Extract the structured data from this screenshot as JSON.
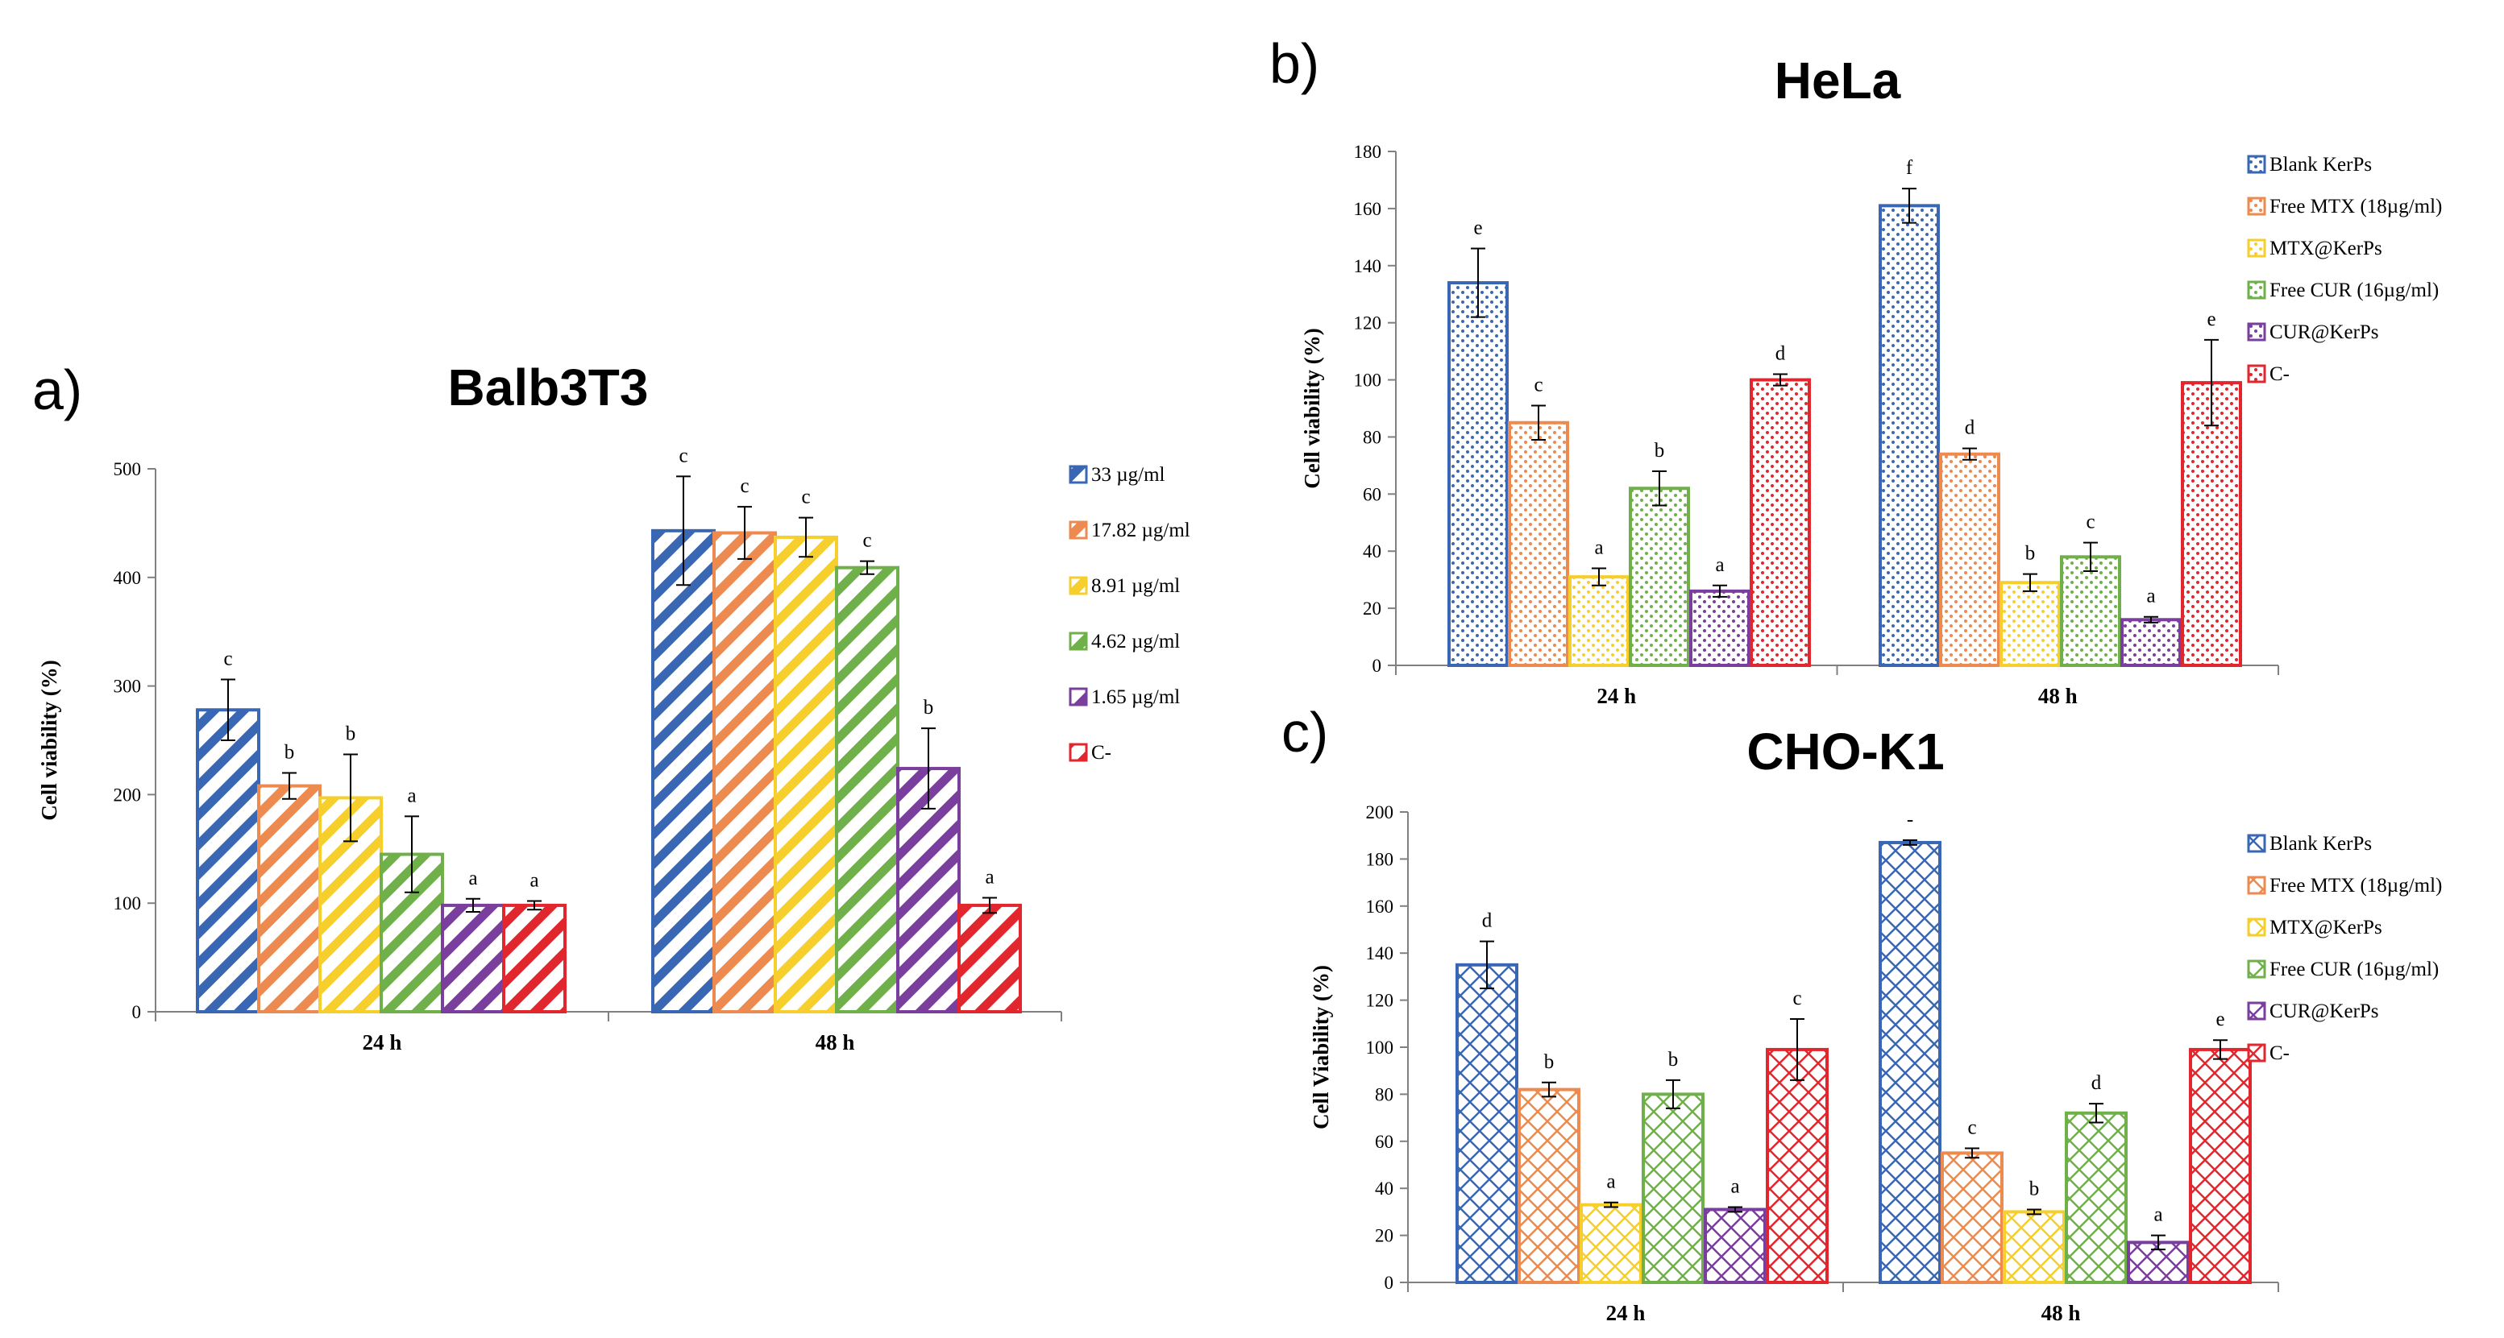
{
  "colors": {
    "blue": "#3a67b4",
    "orange": "#ec8a4f",
    "yellow": "#f6cf2c",
    "green": "#6fb04a",
    "purple": "#7a3e9d",
    "red": "#e2262d",
    "axis": "#808080"
  },
  "chart_data": [
    {
      "id": "a",
      "panel": "a)",
      "type": "bar",
      "title": "Balb3T3",
      "xlabel": "",
      "ylabel": "Cell viability  (%)",
      "ylim": [
        0,
        500
      ],
      "yticks": [
        0,
        100,
        200,
        300,
        400,
        500
      ],
      "pattern": "stripes",
      "grid": false,
      "legend_position": "right",
      "categories": [
        "24 h",
        "48 h"
      ],
      "series": [
        {
          "name": "33 µg/ml",
          "color": "blue",
          "values": [
            278,
            443
          ],
          "errors": [
            28,
            50
          ],
          "letters": [
            "c",
            "c"
          ]
        },
        {
          "name": "17.82 µg/ml",
          "color": "orange",
          "values": [
            208,
            441
          ],
          "errors": [
            12,
            24
          ],
          "letters": [
            "b",
            "c"
          ]
        },
        {
          "name": "8.91 µg/ml",
          "color": "yellow",
          "values": [
            197,
            437
          ],
          "errors": [
            40,
            18
          ],
          "letters": [
            "b",
            "c"
          ]
        },
        {
          "name": "4.62 µg/ml",
          "color": "green",
          "values": [
            145,
            409
          ],
          "errors": [
            35,
            6
          ],
          "letters": [
            "a",
            "c"
          ]
        },
        {
          "name": "1.65 µg/ml",
          "color": "purple",
          "values": [
            98,
            224
          ],
          "errors": [
            6,
            37
          ],
          "letters": [
            "a",
            "b"
          ]
        },
        {
          "name": "C-",
          "color": "red",
          "values": [
            98,
            98
          ],
          "errors": [
            4,
            7
          ],
          "letters": [
            "a",
            "a"
          ]
        }
      ]
    },
    {
      "id": "b",
      "panel": "b)",
      "type": "bar",
      "title": "HeLa",
      "xlabel": "",
      "ylabel": "Cell viability  (%)",
      "ylim": [
        0,
        180
      ],
      "yticks": [
        0,
        20,
        40,
        60,
        80,
        100,
        120,
        140,
        160,
        180
      ],
      "pattern": "dots",
      "grid": false,
      "legend_position": "right",
      "categories": [
        "24 h",
        "48 h"
      ],
      "series": [
        {
          "name": "Blank KerPs",
          "color": "blue",
          "values": [
            134,
            161
          ],
          "errors": [
            12,
            6
          ],
          "letters": [
            "e",
            "f"
          ]
        },
        {
          "name": "Free MTX (18µg/ml)",
          "color": "orange",
          "values": [
            85,
            74
          ],
          "errors": [
            6,
            2
          ],
          "letters": [
            "c",
            "d"
          ]
        },
        {
          "name": "MTX@KerPs",
          "color": "yellow",
          "values": [
            31,
            29
          ],
          "errors": [
            3,
            3
          ],
          "letters": [
            "a",
            "b"
          ]
        },
        {
          "name": "Free CUR (16µg/ml)",
          "color": "green",
          "values": [
            62,
            38
          ],
          "errors": [
            6,
            5
          ],
          "letters": [
            "b",
            "c"
          ]
        },
        {
          "name": "CUR@KerPs",
          "color": "purple",
          "values": [
            26,
            16
          ],
          "errors": [
            2,
            1
          ],
          "letters": [
            "a",
            "a"
          ]
        },
        {
          "name": "C-",
          "color": "red",
          "values": [
            100,
            99
          ],
          "errors": [
            2,
            15
          ],
          "letters": [
            "d",
            "e"
          ]
        }
      ]
    },
    {
      "id": "c",
      "panel": "c)",
      "type": "bar",
      "title": "CHO-K1",
      "xlabel": "",
      "ylabel": "Cell Viability  (%)",
      "ylim": [
        0,
        200
      ],
      "yticks": [
        0,
        20,
        40,
        60,
        80,
        100,
        120,
        140,
        160,
        180,
        200
      ],
      "pattern": "crosshatch",
      "grid": false,
      "legend_position": "right",
      "categories": [
        "24 h",
        "48 h"
      ],
      "series": [
        {
          "name": "Blank KerPs",
          "color": "blue",
          "values": [
            135,
            187
          ],
          "errors": [
            10,
            1
          ],
          "letters": [
            "d",
            "-"
          ]
        },
        {
          "name": "Free MTX (18µg/ml)",
          "color": "orange",
          "values": [
            82,
            55
          ],
          "errors": [
            3,
            2
          ],
          "letters": [
            "b",
            "c"
          ]
        },
        {
          "name": "MTX@KerPs",
          "color": "yellow",
          "values": [
            33,
            30
          ],
          "errors": [
            1,
            1
          ],
          "letters": [
            "a",
            "b"
          ]
        },
        {
          "name": "Free CUR (16µg/ml)",
          "color": "green",
          "values": [
            80,
            72
          ],
          "errors": [
            6,
            4
          ],
          "letters": [
            "b",
            "d"
          ]
        },
        {
          "name": "CUR@KerPs",
          "color": "purple",
          "values": [
            31,
            17
          ],
          "errors": [
            1,
            3
          ],
          "letters": [
            "a",
            "a"
          ]
        },
        {
          "name": "C-",
          "color": "red",
          "values": [
            99,
            99
          ],
          "errors": [
            13,
            4
          ],
          "letters": [
            "c",
            "e"
          ]
        }
      ]
    }
  ]
}
